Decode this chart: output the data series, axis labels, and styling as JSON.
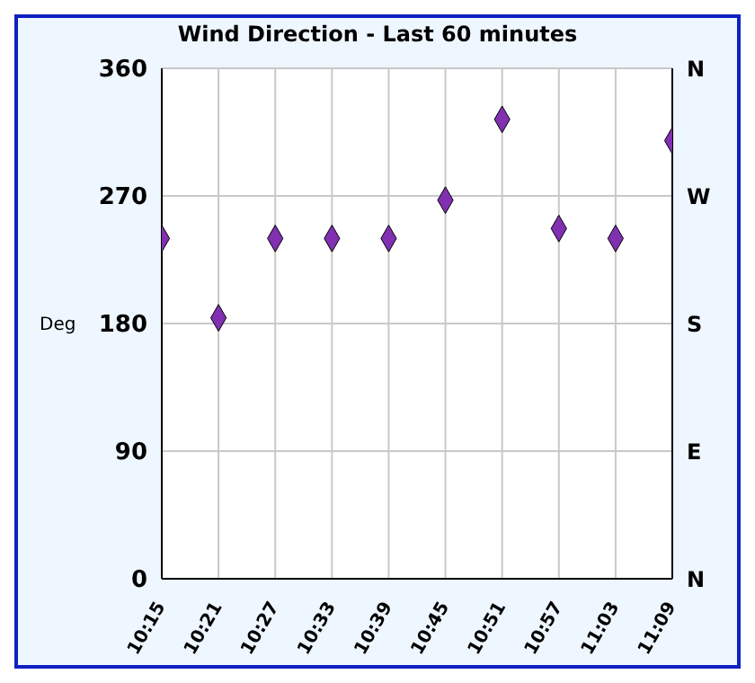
{
  "chart_data": {
    "type": "scatter",
    "title": "Wind Direction - Last 60 minutes",
    "ylabel": "Deg",
    "x": [
      10.25,
      10.35,
      10.45,
      10.55,
      10.65,
      10.75,
      10.85,
      10.95,
      11.05,
      11.15
    ],
    "values": [
      240,
      184,
      240,
      240,
      240,
      267,
      324,
      247,
      240,
      309
    ],
    "color": "#8030b0",
    "marker": "diamond",
    "grid": true,
    "xlim": [
      10.25,
      11.15
    ],
    "xticks": [
      {
        "value": 10.25,
        "label": "10:15"
      },
      {
        "value": 10.35,
        "label": "10:21"
      },
      {
        "value": 10.45,
        "label": "10:27"
      },
      {
        "value": 10.55,
        "label": "10:33"
      },
      {
        "value": 10.65,
        "label": "10:39"
      },
      {
        "value": 10.75,
        "label": "10:45"
      },
      {
        "value": 10.85,
        "label": "10:51"
      },
      {
        "value": 10.95,
        "label": "10:57"
      },
      {
        "value": 11.05,
        "label": "11:03"
      },
      {
        "value": 11.15,
        "label": "11:09"
      }
    ],
    "ylim": [
      0,
      360
    ],
    "yticks": [
      0,
      90,
      180,
      270,
      360
    ],
    "y2_categories": [
      "N",
      "W",
      "S",
      "E",
      "N"
    ]
  }
}
